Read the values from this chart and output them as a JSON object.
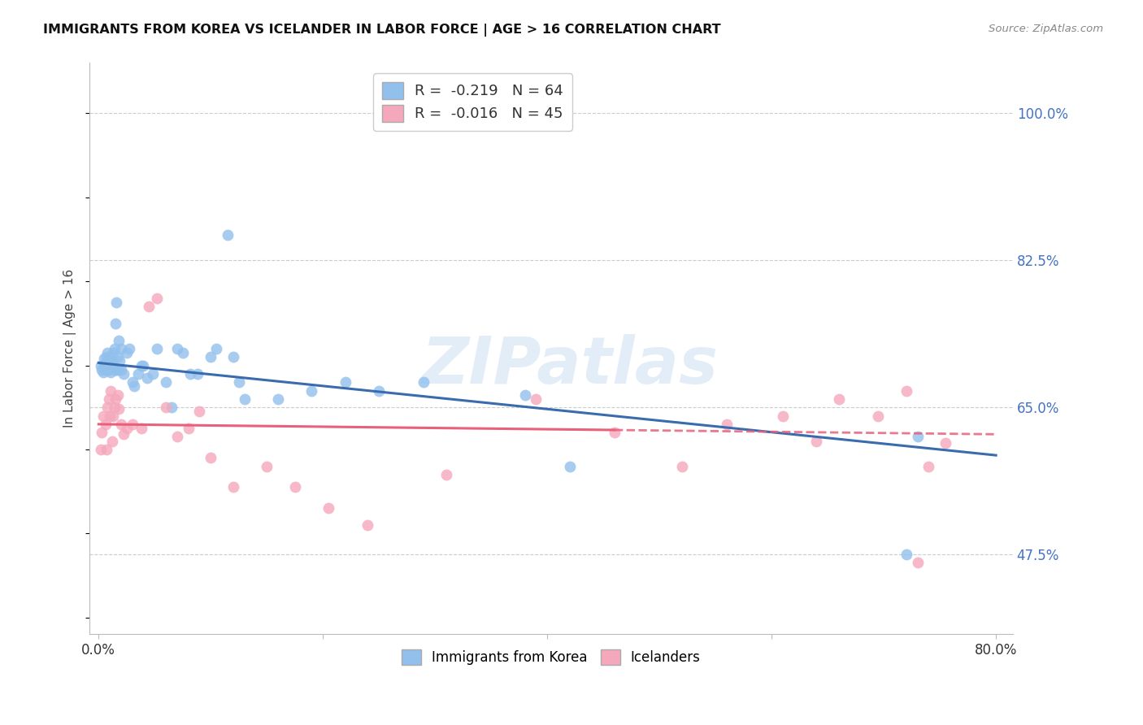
{
  "title": "IMMIGRANTS FROM KOREA VS ICELANDER IN LABOR FORCE | AGE > 16 CORRELATION CHART",
  "source": "Source: ZipAtlas.com",
  "ylabel": "In Labor Force | Age > 16",
  "xlim": [
    0.0,
    0.8
  ],
  "ylim": [
    0.38,
    1.06
  ],
  "ytick_positions": [
    0.475,
    0.65,
    0.825,
    1.0
  ],
  "ytick_labels": [
    "47.5%",
    "65.0%",
    "82.5%",
    "100.0%"
  ],
  "xtick_positions": [
    0.0,
    0.2,
    0.4,
    0.6,
    0.8
  ],
  "xtick_labels": [
    "0.0%",
    "",
    "",
    "",
    "80.0%"
  ],
  "korea_R": "-0.219",
  "korea_N": "64",
  "iceland_R": "-0.016",
  "iceland_N": "45",
  "korea_color": "#92C0ED",
  "iceland_color": "#F5A8BC",
  "korea_line_color": "#3A6BAE",
  "iceland_line_color": "#E8607A",
  "background_color": "#FFFFFF",
  "watermark": "ZIPatlas",
  "korea_line_start_y": 0.703,
  "korea_line_end_y": 0.593,
  "iceland_line_y": 0.625,
  "korea_x": [
    0.002,
    0.003,
    0.004,
    0.005,
    0.005,
    0.006,
    0.006,
    0.007,
    0.007,
    0.008,
    0.008,
    0.009,
    0.009,
    0.01,
    0.01,
    0.011,
    0.011,
    0.012,
    0.012,
    0.013,
    0.013,
    0.014,
    0.015,
    0.015,
    0.016,
    0.016,
    0.017,
    0.018,
    0.018,
    0.019,
    0.02,
    0.02,
    0.022,
    0.025,
    0.027,
    0.03,
    0.032,
    0.035,
    0.038,
    0.04,
    0.043,
    0.048,
    0.052,
    0.06,
    0.065,
    0.07,
    0.075,
    0.082,
    0.088,
    0.1,
    0.105,
    0.115,
    0.12,
    0.125,
    0.13,
    0.16,
    0.19,
    0.22,
    0.25,
    0.29,
    0.38,
    0.42,
    0.72,
    0.73
  ],
  "korea_y": [
    0.7,
    0.695,
    0.692,
    0.7,
    0.708,
    0.695,
    0.703,
    0.695,
    0.71,
    0.7,
    0.715,
    0.695,
    0.705,
    0.698,
    0.71,
    0.7,
    0.692,
    0.698,
    0.705,
    0.7,
    0.715,
    0.72,
    0.75,
    0.695,
    0.775,
    0.695,
    0.71,
    0.73,
    0.695,
    0.705,
    0.72,
    0.695,
    0.69,
    0.715,
    0.72,
    0.68,
    0.675,
    0.69,
    0.7,
    0.7,
    0.685,
    0.69,
    0.72,
    0.68,
    0.65,
    0.72,
    0.715,
    0.69,
    0.69,
    0.71,
    0.72,
    0.855,
    0.71,
    0.68,
    0.66,
    0.66,
    0.67,
    0.68,
    0.67,
    0.68,
    0.665,
    0.58,
    0.475,
    0.615
  ],
  "iceland_x": [
    0.002,
    0.003,
    0.004,
    0.006,
    0.007,
    0.008,
    0.009,
    0.01,
    0.011,
    0.012,
    0.013,
    0.014,
    0.015,
    0.017,
    0.018,
    0.02,
    0.022,
    0.025,
    0.03,
    0.038,
    0.045,
    0.052,
    0.06,
    0.07,
    0.08,
    0.09,
    0.1,
    0.12,
    0.15,
    0.175,
    0.205,
    0.24,
    0.31,
    0.39,
    0.46,
    0.52,
    0.56,
    0.61,
    0.64,
    0.66,
    0.695,
    0.72,
    0.73,
    0.74,
    0.755
  ],
  "iceland_y": [
    0.6,
    0.62,
    0.64,
    0.63,
    0.6,
    0.65,
    0.66,
    0.64,
    0.67,
    0.61,
    0.64,
    0.65,
    0.66,
    0.665,
    0.648,
    0.63,
    0.618,
    0.625,
    0.63,
    0.625,
    0.77,
    0.78,
    0.65,
    0.615,
    0.625,
    0.645,
    0.59,
    0.555,
    0.58,
    0.555,
    0.53,
    0.51,
    0.57,
    0.66,
    0.62,
    0.58,
    0.63,
    0.64,
    0.61,
    0.66,
    0.64,
    0.67,
    0.465,
    0.58,
    0.608
  ]
}
